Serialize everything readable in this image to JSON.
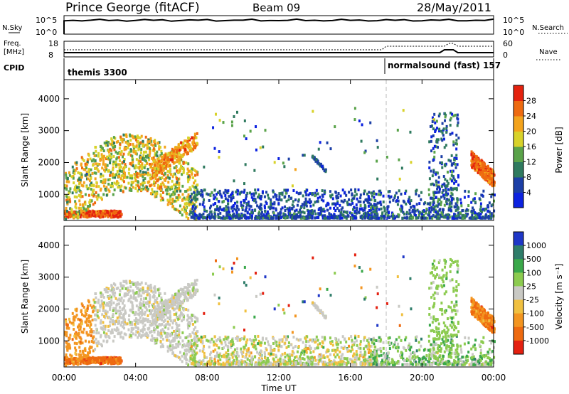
{
  "header": {
    "station": "Prince George (fitACF)",
    "beam": "Beam 09",
    "date": "28/May/2011"
  },
  "top_panel": {
    "left_label": "N.Sky",
    "left_ticks": [
      "10^5",
      "10^0"
    ],
    "right_ticks": [
      "10^5",
      "10^0"
    ],
    "right_label": "N.Search",
    "nsky_level": 0.75,
    "nsearch_level": 0.9
  },
  "freq_panel": {
    "left_label_1": "Freq.",
    "left_label_2": "[MHz]",
    "left_ticks": [
      "18",
      "8"
    ],
    "right_ticks": [
      "60",
      "0"
    ],
    "right_label": "Nave"
  },
  "cpid_panel": {
    "label": "CPID",
    "mode_1": "themis 3300",
    "mode_2": "normalsound (fast) 157",
    "mode_switch_hour": 18
  },
  "x_axis": {
    "label": "Time UT",
    "ticks": [
      "00:00",
      "04:00",
      "08:00",
      "12:00",
      "16:00",
      "20:00",
      "00:00"
    ]
  },
  "chart_data": [
    {
      "type": "heatmap",
      "name": "power",
      "ylabel": "Slant Range [km]",
      "yticks": [
        1000,
        2000,
        3000,
        4000
      ],
      "ylim": [
        180,
        4600
      ],
      "xlim_hours": [
        0,
        24
      ],
      "colorbar_label": "Power [dB]",
      "colorbar_ticks": [
        "4",
        "8",
        "12",
        "16",
        "20",
        "24",
        "28"
      ],
      "colorbar_colors": [
        "#0c22e0",
        "#1c3fa6",
        "#2f7a5f",
        "#5aa34a",
        "#d8d22a",
        "#f3a31c",
        "#ee6a10",
        "#e4220e"
      ]
    },
    {
      "type": "heatmap",
      "name": "velocity",
      "ylabel": "Slant Range [km]",
      "yticks": [
        1000,
        2000,
        3000,
        4000
      ],
      "ylim": [
        180,
        4600
      ],
      "xlim_hours": [
        0,
        24
      ],
      "colorbar_label": "Velocity [m s⁻¹]",
      "colorbar_ticks": [
        "1000",
        "500",
        "100",
        "25",
        "-25",
        "-100",
        "-500",
        "-1000"
      ],
      "colorbar_colors": [
        "#1f37c7",
        "#2f7d6a",
        "#3aa84a",
        "#8ccb4f",
        "#c9c9c4",
        "#f0c040",
        "#f39520",
        "#ee6a10",
        "#e42010"
      ]
    }
  ]
}
